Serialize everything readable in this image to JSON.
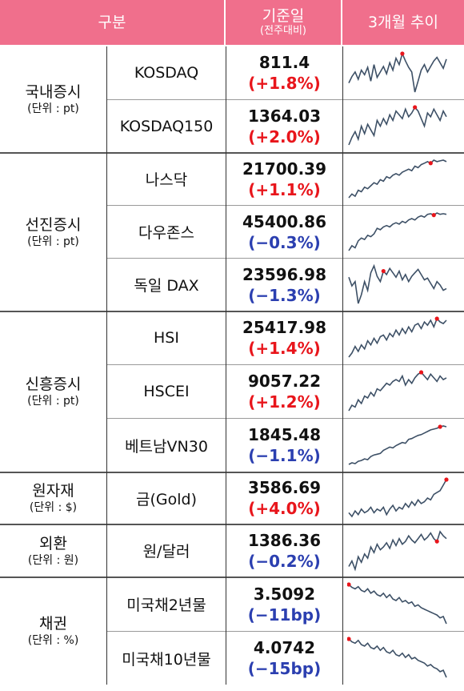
{
  "header": {
    "category": "구분",
    "base_date": "기준일",
    "base_date_sub": "(전주대비)",
    "trend": "3개월 추이"
  },
  "groups": [
    {
      "name": "국내증시",
      "unit": "(단위 : pt)"
    },
    {
      "name": "선진증시",
      "unit": "(단위 : pt)"
    },
    {
      "name": "신흥증시",
      "unit": "(단위 : pt)"
    },
    {
      "name": "원자재",
      "unit": "(단위 : $)"
    },
    {
      "name": "외환",
      "unit": "(단위 : 원)"
    },
    {
      "name": "채권",
      "unit": "(단위 : %)"
    }
  ],
  "rows": [
    {
      "name": "KOSDAQ",
      "value": "811.4",
      "change": "(+1.8%)",
      "direction": "up"
    },
    {
      "name": "KOSDAQ150",
      "value": "1364.03",
      "change": "(+2.0%)",
      "direction": "up"
    },
    {
      "name": "나스닥",
      "value": "21700.39",
      "change": "(+1.1%)",
      "direction": "up"
    },
    {
      "name": "다우존스",
      "value": "45400.86",
      "change": "(−0.3%)",
      "direction": "down"
    },
    {
      "name": "독일 DAX",
      "value": "23596.98",
      "change": "(−1.3%)",
      "direction": "down"
    },
    {
      "name": "HSI",
      "value": "25417.98",
      "change": "(+1.4%)",
      "direction": "up"
    },
    {
      "name": "HSCEI",
      "value": "9057.22",
      "change": "(+1.2%)",
      "direction": "up"
    },
    {
      "name": "베트남VN30",
      "value": "1845.48",
      "change": "(−1.1%)",
      "direction": "down"
    },
    {
      "name": "금(Gold)",
      "value": "3586.69",
      "change": "(+4.0%)",
      "direction": "up"
    },
    {
      "name": "원/달러",
      "value": "1386.36",
      "change": "(−0.2%)",
      "direction": "down"
    },
    {
      "name": "미국채2년물",
      "value": "3.5092",
      "change": "(−11bp)",
      "direction": "down"
    },
    {
      "name": "미국채10년물",
      "value": "4.0742",
      "change": "(−15bp)",
      "direction": "down"
    }
  ],
  "colors": {
    "header_bg": "#f06f8c",
    "up": "#e8151b",
    "down": "#2b3fb0",
    "spark_line": "#3d5066",
    "spark_marker": "#e8151b"
  },
  "sparklines": [
    {
      "values": [
        42,
        35,
        30,
        38,
        28,
        33,
        25,
        40,
        22,
        36,
        30,
        24,
        32,
        20,
        28,
        15,
        22,
        10,
        18,
        25,
        30,
        52,
        40,
        28,
        22,
        30,
        24,
        18,
        14,
        20,
        26,
        16
      ],
      "marker": 17
    },
    {
      "values": [
        50,
        42,
        36,
        44,
        30,
        38,
        28,
        34,
        40,
        24,
        30,
        22,
        28,
        18,
        24,
        14,
        18,
        22,
        12,
        20,
        16,
        10,
        14,
        22,
        30,
        16,
        20,
        12,
        18,
        24,
        14,
        20
      ],
      "marker": 21
    },
    {
      "values": [
        60,
        55,
        58,
        50,
        52,
        46,
        48,
        44,
        40,
        42,
        36,
        38,
        32,
        34,
        30,
        28,
        30,
        26,
        24,
        22,
        24,
        18,
        20,
        16,
        14,
        12,
        14,
        10,
        12,
        11,
        10,
        12
      ],
      "marker": 26
    },
    {
      "values": [
        62,
        55,
        58,
        48,
        44,
        46,
        40,
        42,
        38,
        30,
        32,
        28,
        26,
        28,
        24,
        22,
        24,
        20,
        22,
        18,
        16,
        18,
        14,
        12,
        14,
        10,
        9,
        11,
        8,
        10,
        9,
        10
      ],
      "marker": 27
    },
    {
      "values": [
        25,
        35,
        30,
        55,
        45,
        30,
        40,
        20,
        12,
        24,
        30,
        18,
        22,
        15,
        20,
        25,
        18,
        28,
        22,
        30,
        24,
        20,
        16,
        22,
        28,
        26,
        32,
        38,
        30,
        34,
        40,
        38
      ],
      "marker": 11
    },
    {
      "values": [
        55,
        50,
        42,
        48,
        40,
        45,
        35,
        40,
        32,
        38,
        30,
        28,
        34,
        26,
        30,
        22,
        28,
        20,
        26,
        18,
        24,
        16,
        14,
        20,
        12,
        16,
        10,
        18,
        8,
        12,
        14,
        10
      ],
      "marker": 28
    },
    {
      "values": [
        52,
        46,
        48,
        40,
        44,
        36,
        38,
        32,
        36,
        28,
        30,
        26,
        22,
        24,
        20,
        18,
        20,
        14,
        24,
        18,
        22,
        16,
        12,
        10,
        14,
        18,
        12,
        16,
        20,
        14,
        18,
        16
      ],
      "marker": 23
    },
    {
      "values": [
        62,
        60,
        61,
        58,
        57,
        55,
        56,
        52,
        50,
        49,
        48,
        44,
        42,
        40,
        41,
        38,
        36,
        34,
        35,
        30,
        29,
        27,
        25,
        24,
        22,
        20,
        18,
        17,
        16,
        14,
        13,
        14
      ],
      "marker": 29
    },
    {
      "values": [
        40,
        44,
        38,
        42,
        36,
        40,
        38,
        34,
        40,
        36,
        38,
        34,
        42,
        36,
        32,
        38,
        34,
        36,
        30,
        34,
        28,
        32,
        26,
        30,
        28,
        24,
        26,
        20,
        18,
        16,
        10,
        4
      ],
      "marker": 31
    },
    {
      "values": [
        58,
        50,
        62,
        44,
        52,
        40,
        46,
        30,
        38,
        26,
        34,
        30,
        24,
        32,
        20,
        28,
        18,
        26,
        22,
        14,
        20,
        24,
        18,
        12,
        20,
        16,
        10,
        18,
        22,
        8,
        14,
        18
      ],
      "marker": 28
    },
    {
      "values": [
        6,
        10,
        12,
        9,
        14,
        16,
        12,
        18,
        15,
        20,
        22,
        18,
        24,
        20,
        26,
        28,
        24,
        30,
        28,
        32,
        30,
        36,
        34,
        38,
        40,
        42,
        44,
        46,
        48,
        52,
        50,
        60
      ],
      "marker": 0
    },
    {
      "values": [
        8,
        12,
        14,
        10,
        16,
        18,
        14,
        20,
        22,
        18,
        24,
        20,
        26,
        28,
        24,
        30,
        32,
        28,
        34,
        30,
        36,
        34,
        38,
        40,
        42,
        46,
        44,
        48,
        50,
        54,
        52,
        62
      ],
      "marker": 0
    }
  ]
}
